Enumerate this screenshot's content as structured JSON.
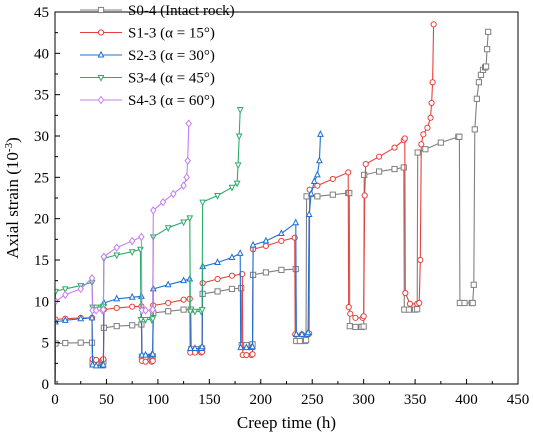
{
  "chart_data": {
    "type": "line",
    "xlabel": "Creep time (h)",
    "ylabel": "Axial strain (10",
    "ylabel_sup": "-3",
    "ylabel_end": ")",
    "xlim": [
      0,
      450
    ],
    "ylim": [
      0,
      45
    ],
    "x_ticks": [
      0,
      50,
      100,
      150,
      200,
      250,
      300,
      350,
      400,
      450
    ],
    "y_ticks": [
      0,
      5,
      10,
      15,
      20,
      25,
      30,
      35,
      40,
      45
    ],
    "x_tick_labels": [
      "0",
      "50",
      "100",
      "150",
      "200",
      "250",
      "300",
      "350",
      "400",
      "450"
    ],
    "y_tick_labels": [
      "0",
      "5",
      "10",
      "15",
      "20",
      "25",
      "30",
      "35",
      "40",
      "45"
    ],
    "grid": false,
    "legend_position": "top-left",
    "series": [
      {
        "name": "S0-4 (Intact rock)",
        "color": "#808080",
        "marker": "square",
        "points": [
          [
            0,
            0
          ],
          [
            0.5,
            4.9
          ],
          [
            10,
            4.95
          ],
          [
            25,
            5.0
          ],
          [
            36,
            5.0
          ],
          [
            36.5,
            2.6
          ],
          [
            40,
            2.6
          ],
          [
            46,
            2.65
          ],
          [
            47,
            2.7
          ],
          [
            47.5,
            6.8
          ],
          [
            60,
            7.0
          ],
          [
            75,
            7.1
          ],
          [
            84,
            7.2
          ],
          [
            84.5,
            3.3
          ],
          [
            88,
            3.3
          ],
          [
            94,
            3.3
          ],
          [
            95,
            3.35
          ],
          [
            95.5,
            8.6
          ],
          [
            110,
            8.8
          ],
          [
            125,
            9.0
          ],
          [
            132,
            9.0
          ],
          [
            132.5,
            4.2
          ],
          [
            137,
            4.2
          ],
          [
            142,
            4.2
          ],
          [
            143,
            4.3
          ],
          [
            143.5,
            10.9
          ],
          [
            158,
            11.2
          ],
          [
            172,
            11.5
          ],
          [
            181,
            11.6
          ],
          [
            181.5,
            4.7
          ],
          [
            186,
            4.7
          ],
          [
            191,
            4.7
          ],
          [
            192,
            4.8
          ],
          [
            192.5,
            13.2
          ],
          [
            205,
            13.5
          ],
          [
            220,
            13.8
          ],
          [
            234,
            13.9
          ],
          [
            234.5,
            5.2
          ],
          [
            238,
            5.2
          ],
          [
            243,
            5.2
          ],
          [
            244,
            5.3
          ],
          [
            244.5,
            22.7
          ],
          [
            255,
            22.7
          ],
          [
            270,
            22.9
          ],
          [
            285,
            23.1
          ],
          [
            286,
            23.1
          ],
          [
            286.5,
            7.0
          ],
          [
            292,
            6.9
          ],
          [
            298,
            6.9
          ],
          [
            300,
            6.95
          ],
          [
            300.5,
            25.3
          ],
          [
            315,
            25.7
          ],
          [
            330,
            26.0
          ],
          [
            339,
            26.2
          ],
          [
            339.5,
            9.0
          ],
          [
            344,
            9.0
          ],
          [
            350,
            9.0
          ],
          [
            352,
            9.05
          ],
          [
            352.5,
            28.0
          ],
          [
            360,
            28.4
          ],
          [
            375,
            29.2
          ],
          [
            392,
            29.9
          ],
          [
            393,
            29.9
          ],
          [
            393.5,
            9.8
          ],
          [
            398,
            9.8
          ],
          [
            405,
            9.8
          ],
          [
            406,
            9.8
          ],
          [
            407,
            12.0
          ],
          [
            408,
            30.8
          ],
          [
            410,
            34.5
          ],
          [
            412,
            36.5
          ],
          [
            414,
            37.4
          ],
          [
            416,
            38.0
          ],
          [
            418,
            38.3
          ],
          [
            419,
            38.4
          ],
          [
            420,
            40.5
          ],
          [
            421,
            42.6
          ]
        ]
      },
      {
        "name": "S1-3 (α = 15°)",
        "color": "#e8413c",
        "marker": "circle",
        "points": [
          [
            0,
            0
          ],
          [
            0.5,
            7.8
          ],
          [
            10,
            7.9
          ],
          [
            25,
            8.0
          ],
          [
            36,
            8.0
          ],
          [
            36.5,
            3.0
          ],
          [
            40,
            2.9
          ],
          [
            46,
            2.9
          ],
          [
            47,
            3.0
          ],
          [
            47.5,
            9.0
          ],
          [
            60,
            9.2
          ],
          [
            75,
            9.35
          ],
          [
            84,
            9.4
          ],
          [
            84.5,
            2.8
          ],
          [
            88,
            2.7
          ],
          [
            94,
            2.7
          ],
          [
            95,
            2.8
          ],
          [
            95.5,
            9.5
          ],
          [
            110,
            9.8
          ],
          [
            125,
            10.2
          ],
          [
            131,
            10.3
          ],
          [
            131.5,
            3.8
          ],
          [
            136,
            3.8
          ],
          [
            142,
            3.8
          ],
          [
            143,
            3.9
          ],
          [
            143.5,
            12.2
          ],
          [
            158,
            12.7
          ],
          [
            172,
            13.1
          ],
          [
            182,
            13.3
          ],
          [
            182.5,
            3.5
          ],
          [
            186,
            3.5
          ],
          [
            191,
            3.5
          ],
          [
            192,
            3.6
          ],
          [
            192.5,
            16.3
          ],
          [
            205,
            16.7
          ],
          [
            220,
            17.3
          ],
          [
            233,
            17.7
          ],
          [
            233.5,
            6.0
          ],
          [
            240,
            6.0
          ],
          [
            246,
            6.0
          ],
          [
            247,
            6.1
          ],
          [
            247.5,
            23.5
          ],
          [
            255,
            24.0
          ],
          [
            270,
            24.8
          ],
          [
            285,
            25.6
          ],
          [
            285.5,
            9.3
          ],
          [
            287,
            8.5
          ],
          [
            292,
            8.0
          ],
          [
            299,
            8.0
          ],
          [
            300,
            8.2
          ],
          [
            301,
            22.8
          ],
          [
            302,
            26.6
          ],
          [
            315,
            27.5
          ],
          [
            330,
            28.6
          ],
          [
            339,
            29.5
          ],
          [
            340,
            29.7
          ],
          [
            340.5,
            11.0
          ],
          [
            345,
            9.7
          ],
          [
            352,
            9.7
          ],
          [
            354,
            9.8
          ],
          [
            355,
            15.0
          ],
          [
            356,
            29.0
          ],
          [
            358,
            30.2
          ],
          [
            362,
            31.0
          ],
          [
            365,
            32.2
          ],
          [
            366,
            34.0
          ],
          [
            367,
            36.5
          ],
          [
            368,
            43.5
          ]
        ]
      },
      {
        "name": "S2-3 (α = 30°)",
        "color": "#1e6fd9",
        "marker": "triangle-up",
        "points": [
          [
            0,
            0
          ],
          [
            0.5,
            7.5
          ],
          [
            10,
            7.7
          ],
          [
            25,
            7.9
          ],
          [
            36,
            8.0
          ],
          [
            36.5,
            2.3
          ],
          [
            40,
            2.2
          ],
          [
            46,
            2.2
          ],
          [
            47,
            2.3
          ],
          [
            47.5,
            9.8
          ],
          [
            60,
            10.3
          ],
          [
            75,
            10.5
          ],
          [
            84,
            10.6
          ],
          [
            84.5,
            3.5
          ],
          [
            88,
            3.5
          ],
          [
            94,
            3.5
          ],
          [
            95,
            3.6
          ],
          [
            95.5,
            11.5
          ],
          [
            110,
            12.0
          ],
          [
            125,
            12.5
          ],
          [
            131,
            12.7
          ],
          [
            131.5,
            4.3
          ],
          [
            136,
            4.3
          ],
          [
            142,
            4.3
          ],
          [
            143,
            4.5
          ],
          [
            143.5,
            14.2
          ],
          [
            158,
            14.7
          ],
          [
            172,
            15.3
          ],
          [
            180,
            15.8
          ],
          [
            180.5,
            4.4
          ],
          [
            186,
            4.4
          ],
          [
            191,
            4.4
          ],
          [
            192,
            4.5
          ],
          [
            192.5,
            16.8
          ],
          [
            205,
            17.3
          ],
          [
            220,
            18.2
          ],
          [
            234,
            19.5
          ],
          [
            234.5,
            6.0
          ],
          [
            240,
            6.0
          ],
          [
            245,
            6.0
          ],
          [
            246,
            6.2
          ],
          [
            247,
            20.5
          ],
          [
            249,
            23.0
          ],
          [
            252,
            24.5
          ],
          [
            255,
            25.3
          ],
          [
            257,
            27.0
          ],
          [
            258,
            30.2
          ]
        ]
      },
      {
        "name": "S3-4 (α = 45°)",
        "color": "#2dab6a",
        "marker": "triangle-down",
        "points": [
          [
            0,
            0
          ],
          [
            0.5,
            11.2
          ],
          [
            10,
            11.5
          ],
          [
            25,
            11.9
          ],
          [
            36,
            12.3
          ],
          [
            36.5,
            9.3
          ],
          [
            40,
            9.3
          ],
          [
            46,
            9.3
          ],
          [
            47,
            9.4
          ],
          [
            47.5,
            15.2
          ],
          [
            60,
            15.6
          ],
          [
            75,
            16.0
          ],
          [
            83,
            16.3
          ],
          [
            83.5,
            7.8
          ],
          [
            88,
            7.8
          ],
          [
            94,
            7.8
          ],
          [
            95,
            7.9
          ],
          [
            95.5,
            17.8
          ],
          [
            110,
            18.9
          ],
          [
            125,
            19.6
          ],
          [
            131,
            20.1
          ],
          [
            131.5,
            8.8
          ],
          [
            136,
            8.8
          ],
          [
            142,
            8.8
          ],
          [
            143,
            9.0
          ],
          [
            143.5,
            22.0
          ],
          [
            158,
            22.8
          ],
          [
            172,
            23.8
          ],
          [
            177,
            24.3
          ],
          [
            178,
            26.5
          ],
          [
            179,
            30.0
          ],
          [
            180,
            33.2
          ]
        ]
      },
      {
        "name": "S4-3 (α = 60°)",
        "color": "#c77df0",
        "marker": "diamond",
        "points": [
          [
            0,
            0
          ],
          [
            0.5,
            10.0
          ],
          [
            10,
            10.8
          ],
          [
            25,
            11.5
          ],
          [
            36,
            12.8
          ],
          [
            36.5,
            8.9
          ],
          [
            40,
            8.9
          ],
          [
            46,
            8.9
          ],
          [
            47,
            9.0
          ],
          [
            47.5,
            15.4
          ],
          [
            60,
            16.5
          ],
          [
            75,
            17.3
          ],
          [
            84,
            17.8
          ],
          [
            84.5,
            8.9
          ],
          [
            88,
            8.9
          ],
          [
            94,
            8.9
          ],
          [
            95,
            9.0
          ],
          [
            95.5,
            21.0
          ],
          [
            105,
            22.0
          ],
          [
            115,
            23.0
          ],
          [
            125,
            24.0
          ],
          [
            128,
            25.0
          ],
          [
            129,
            27.0
          ],
          [
            130,
            31.5
          ]
        ]
      }
    ]
  }
}
